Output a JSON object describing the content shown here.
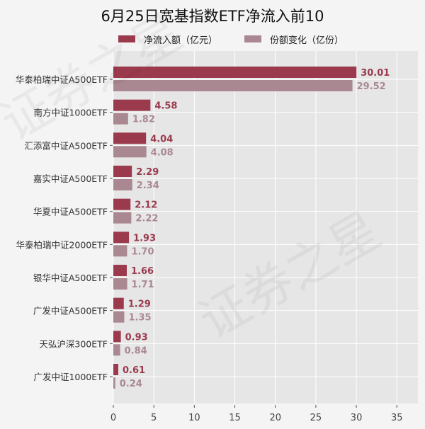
{
  "chart_data": {
    "type": "bar",
    "orientation": "horizontal",
    "title": "6月25日宽基指数ETF净流入前10",
    "categories": [
      "华泰柏瑞中证A500ETF",
      "南方中证1000ETF",
      "汇添富中证A500ETF",
      "嘉实中证A500ETF",
      "华夏中证A500ETF",
      "华泰柏瑞中证2000ETF",
      "银华中证A500ETF",
      "广发中证A500ETF",
      "天弘沪深300ETF",
      "广发中证1000ETF"
    ],
    "series": [
      {
        "name": "净流入额（亿元）",
        "color": "#9b3a4d",
        "values": [
          30.01,
          4.58,
          4.04,
          2.29,
          2.12,
          1.93,
          1.66,
          1.29,
          0.93,
          0.61
        ]
      },
      {
        "name": "份额变化（亿份）",
        "color": "#aa8891",
        "values": [
          29.52,
          1.82,
          4.08,
          2.34,
          2.22,
          1.7,
          1.71,
          1.35,
          0.84,
          0.24
        ]
      }
    ],
    "xlim": [
      0,
      37.6
    ],
    "xticks": [
      0,
      5,
      10,
      15,
      20,
      25,
      30,
      35
    ],
    "xlabel": "",
    "ylabel": "",
    "grid": true,
    "legend": "top"
  }
}
